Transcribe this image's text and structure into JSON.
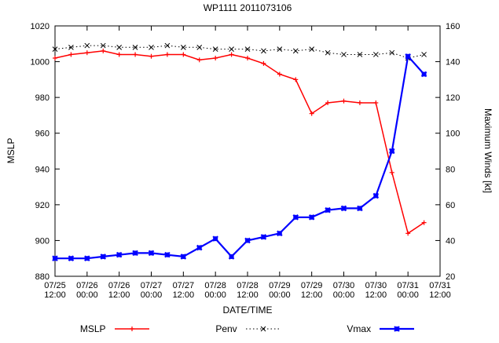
{
  "page": {
    "background": "#ffffff",
    "text_color": "#000000"
  },
  "chart_data": {
    "type": "line",
    "title": "WP1111 2011073106",
    "xlabel": "DATE/TIME",
    "ylabel_left": "MSLP",
    "ylabel_right": "Maximum Winds [kt]",
    "ylim_left": [
      880,
      1020
    ],
    "ylim_right": [
      20,
      160
    ],
    "ytick_step": 20,
    "x_range_hours": [
      0,
      144
    ],
    "xtick_step_hours": 12,
    "step_hours": 6,
    "grid": false,
    "legend_position": "bottom",
    "x_tick_labels": [
      "07/25 12:00",
      "07/26 00:00",
      "07/26 12:00",
      "07/27 00:00",
      "07/27 12:00",
      "07/28 00:00",
      "07/28 12:00",
      "07/29 00:00",
      "07/29 12:00",
      "07/30 00:00",
      "07/30 12:00",
      "07/31 00:00",
      "07/31 12:00"
    ],
    "times": [
      "07/25 12:00",
      "07/25 18:00",
      "07/26 00:00",
      "07/26 06:00",
      "07/26 12:00",
      "07/26 18:00",
      "07/27 00:00",
      "07/27 06:00",
      "07/27 12:00",
      "07/27 18:00",
      "07/28 00:00",
      "07/28 06:00",
      "07/28 12:00",
      "07/28 18:00",
      "07/29 00:00",
      "07/29 06:00",
      "07/29 12:00",
      "07/29 18:00",
      "07/30 00:00",
      "07/30 06:00",
      "07/30 12:00",
      "07/30 18:00",
      "07/31 00:00",
      "07/31 06:00"
    ],
    "series": [
      {
        "name": "MSLP",
        "axis": "left",
        "color": "#ff0000",
        "marker": "plus",
        "line": "solid",
        "width": 1.5,
        "values": [
          1002,
          1004,
          1005,
          1006,
          1004,
          1004,
          1003,
          1004,
          1004,
          1001,
          1002,
          1004,
          1002,
          999,
          993,
          990,
          971,
          977,
          978,
          977,
          977,
          938,
          904,
          910
        ]
      },
      {
        "name": "Penv",
        "axis": "left",
        "color": "#000000",
        "marker": "cross",
        "line": "dotted",
        "width": 1,
        "values": [
          1007,
          1008,
          1009,
          1009,
          1008,
          1008,
          1008,
          1009,
          1008,
          1008,
          1007,
          1007,
          1007,
          1006,
          1007,
          1006,
          1007,
          1005,
          1004,
          1004,
          1004,
          1005,
          1002,
          1004
        ]
      },
      {
        "name": "Vmax",
        "axis": "right",
        "color": "#0000ff",
        "marker": "star",
        "line": "solid",
        "width": 2.2,
        "values": [
          30,
          30,
          30,
          31,
          32,
          33,
          33,
          32,
          31,
          36,
          41,
          31,
          40,
          42,
          44,
          53,
          53,
          57,
          58,
          58,
          65,
          90,
          143,
          133
        ]
      }
    ]
  }
}
